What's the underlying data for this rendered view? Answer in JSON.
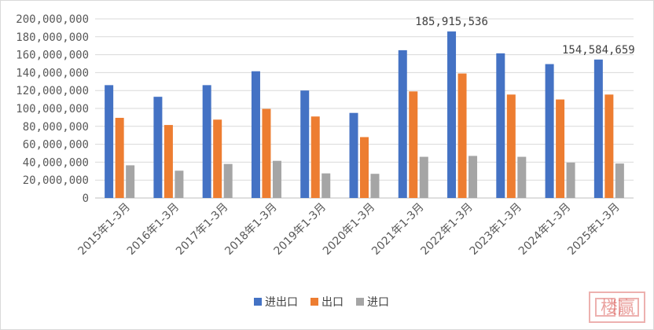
{
  "chart_data": {
    "type": "bar",
    "categories": [
      "2015年1-3月",
      "2016年1-3月",
      "2017年1-3月",
      "2018年1-3月",
      "2019年1-3月",
      "2020年1-3月",
      "2021年1-3月",
      "2022年1-3月",
      "2023年1-3月",
      "2024年1-3月",
      "2025年1-3月"
    ],
    "series": [
      {
        "name": "进出口",
        "color": "#4472c4",
        "values": [
          126000000,
          113000000,
          126000000,
          141500000,
          120000000,
          95000000,
          165000000,
          185915536,
          161500000,
          149500000,
          154584659
        ]
      },
      {
        "name": "出口",
        "color": "#ed7d31",
        "values": [
          89500000,
          81500000,
          87500000,
          99500000,
          91000000,
          68000000,
          119000000,
          139000000,
          115500000,
          110000000,
          115500000
        ]
      },
      {
        "name": "进口",
        "color": "#a5a5a5",
        "values": [
          36500000,
          30500000,
          38000000,
          41500000,
          27500000,
          27000000,
          46000000,
          47000000,
          46000000,
          39500000,
          38500000
        ]
      }
    ],
    "ylim": [
      0,
      200000000
    ],
    "yticks": [
      0,
      20000000,
      40000000,
      60000000,
      80000000,
      100000000,
      120000000,
      140000000,
      160000000,
      180000000,
      200000000
    ],
    "ytick_labels": [
      "0",
      "20,000,000",
      "40,000,000",
      "60,000,000",
      "80,000,000",
      "100,000,000",
      "120,000,000",
      "140,000,000",
      "160,000,000",
      "180,000,000",
      "200,000,000"
    ],
    "data_labels": [
      {
        "series": 0,
        "index": 7,
        "text": "185,915,536"
      },
      {
        "series": 0,
        "index": 10,
        "text": "154,584,659"
      }
    ],
    "grid": true,
    "legend": "bottom-center",
    "title": "",
    "xlabel": "",
    "ylabel": ""
  },
  "watermark": {
    "text": "楼赢"
  }
}
